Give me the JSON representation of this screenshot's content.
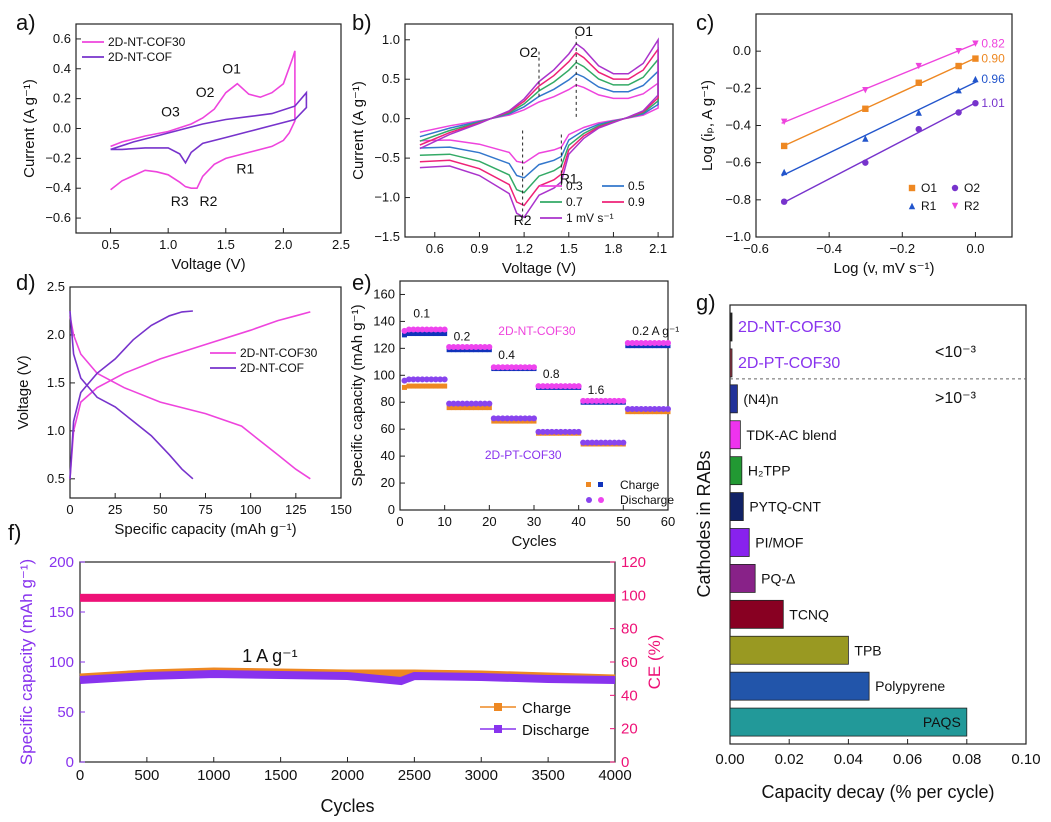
{
  "panel_labels": {
    "a": "a)",
    "b": "b)",
    "c": "c)",
    "d": "d)",
    "e": "e)",
    "f": "f)",
    "g": "g)"
  },
  "chart_data": [
    {
      "id": "a",
      "type": "line",
      "xlabel": "Voltage (V)",
      "ylabel": "Current (A g⁻¹)",
      "xlim": [
        0.2,
        2.5
      ],
      "ylim": [
        -0.7,
        0.7
      ],
      "xticks": [
        0.5,
        1.0,
        1.5,
        2.0,
        2.5
      ],
      "yticks": [
        -0.6,
        -0.4,
        -0.2,
        0.0,
        0.2,
        0.4,
        0.6
      ],
      "series": [
        {
          "name": "2D-NT-COF30",
          "color": "#ee44dd",
          "x": [
            0.5,
            0.6,
            0.8,
            1.0,
            1.2,
            1.3,
            1.4,
            1.5,
            1.6,
            1.7,
            1.8,
            1.9,
            2.0,
            2.08,
            2.1,
            2.1,
            2.05,
            2.0,
            1.9,
            1.7,
            1.5,
            1.4,
            1.3,
            1.25,
            1.2,
            1.15,
            1.1,
            1.0,
            0.9,
            0.8,
            0.6,
            0.5
          ],
          "y": [
            -0.12,
            -0.09,
            -0.05,
            -0.02,
            0.03,
            0.07,
            0.13,
            0.24,
            0.3,
            0.23,
            0.21,
            0.24,
            0.3,
            0.47,
            0.52,
            0.05,
            -0.03,
            -0.08,
            -0.12,
            -0.16,
            -0.2,
            -0.24,
            -0.32,
            -0.4,
            -0.4,
            -0.39,
            -0.36,
            -0.31,
            -0.29,
            -0.28,
            -0.35,
            -0.41
          ]
        },
        {
          "name": "2D-NT-COF",
          "color": "#7733cc",
          "x": [
            0.5,
            0.7,
            0.9,
            1.1,
            1.3,
            1.5,
            1.7,
            1.9,
            2.1,
            2.2,
            2.2,
            2.1,
            1.9,
            1.7,
            1.5,
            1.3,
            1.2,
            1.15,
            1.1,
            1.0,
            0.8,
            0.6,
            0.5
          ],
          "y": [
            -0.14,
            -0.09,
            -0.05,
            -0.01,
            0.03,
            0.06,
            0.08,
            0.1,
            0.15,
            0.24,
            0.14,
            0.06,
            0.02,
            -0.02,
            -0.06,
            -0.1,
            -0.16,
            -0.23,
            -0.17,
            -0.13,
            -0.13,
            -0.14,
            -0.14
          ]
        }
      ],
      "annotations": [
        {
          "text": "O1",
          "x": 1.55,
          "y": 0.37
        },
        {
          "text": "O2",
          "x": 1.32,
          "y": 0.21
        },
        {
          "text": "O3",
          "x": 1.02,
          "y": 0.08
        },
        {
          "text": "R1",
          "x": 1.67,
          "y": -0.3
        },
        {
          "text": "R2",
          "x": 1.35,
          "y": -0.52
        },
        {
          "text": "R3",
          "x": 1.1,
          "y": -0.52
        }
      ]
    },
    {
      "id": "b",
      "type": "line",
      "xlabel": "Voltage (V)",
      "ylabel": "Current (A g⁻¹)",
      "xlim": [
        0.4,
        2.2
      ],
      "ylim": [
        -1.5,
        1.2
      ],
      "xticks": [
        0.6,
        0.9,
        1.2,
        1.5,
        1.8,
        2.1
      ],
      "yticks": [
        -1.5,
        -1.0,
        -0.5,
        0.0,
        0.5,
        1.0
      ],
      "legend_suffix": "mV s⁻¹",
      "series": [
        {
          "name": "0.3",
          "color": "#ee44dd",
          "scale": 0.45
        },
        {
          "name": "0.5",
          "color": "#3377cc",
          "scale": 0.6
        },
        {
          "name": "0.7",
          "color": "#33aa66",
          "scale": 0.75
        },
        {
          "name": "0.9",
          "color": "#ee2277",
          "scale": 0.88
        },
        {
          "name": "1",
          "color": "#aa33cc",
          "scale": 1.0
        }
      ],
      "base_curve": {
        "x": [
          0.5,
          0.7,
          0.9,
          1.1,
          1.2,
          1.3,
          1.4,
          1.5,
          1.55,
          1.6,
          1.7,
          1.8,
          1.9,
          2.0,
          2.1,
          2.1,
          2.0,
          1.9,
          1.8,
          1.7,
          1.6,
          1.5,
          1.45,
          1.4,
          1.3,
          1.2,
          1.15,
          1.1,
          0.9,
          0.7,
          0.5
        ],
        "y": [
          -0.38,
          -0.2,
          -0.06,
          0.1,
          0.25,
          0.47,
          0.62,
          0.82,
          0.95,
          0.88,
          0.67,
          0.57,
          0.57,
          0.7,
          1.0,
          0.3,
          0.1,
          0.02,
          -0.05,
          -0.12,
          -0.25,
          -0.45,
          -0.8,
          -0.88,
          -0.97,
          -1.25,
          -1.2,
          -0.95,
          -0.72,
          -0.6,
          -0.62
        ]
      },
      "annotations": [
        {
          "text": "O1",
          "x": 1.6,
          "y": 1.05
        },
        {
          "text": "O2",
          "x": 1.23,
          "y": 0.78
        },
        {
          "text": "R1",
          "x": 1.5,
          "y": -0.82
        },
        {
          "text": "R2",
          "x": 1.19,
          "y": -1.35
        }
      ]
    },
    {
      "id": "c",
      "type": "scatter",
      "xlabel": "Log (v, mV s⁻¹)",
      "ylabel": "Log (iₚ, A g⁻¹)",
      "xlim": [
        -0.6,
        0.1
      ],
      "ylim": [
        -1.0,
        0.2
      ],
      "xticks": [
        -0.6,
        -0.4,
        -0.2,
        0.0
      ],
      "yticks": [
        -1.0,
        -0.8,
        -0.6,
        -0.4,
        -0.2,
        0.0
      ],
      "x": [
        -0.523,
        -0.301,
        -0.155,
        -0.046,
        0.0
      ],
      "series": [
        {
          "name": "O1",
          "color": "#ee8822",
          "marker": "square",
          "slope": "0.90",
          "values": [
            -0.51,
            -0.31,
            -0.17,
            -0.08,
            -0.04
          ]
        },
        {
          "name": "O2",
          "color": "#7733cc",
          "marker": "circle",
          "slope": "1.01",
          "values": [
            -0.81,
            -0.6,
            -0.42,
            -0.33,
            -0.28
          ]
        },
        {
          "name": "R1",
          "color": "#2255cc",
          "marker": "triangle",
          "slope": "0.96",
          "values": [
            -0.65,
            -0.47,
            -0.33,
            -0.21,
            -0.15
          ]
        },
        {
          "name": "R2",
          "color": "#ee44dd",
          "marker": "triangle-down",
          "slope": "0.82",
          "values": [
            -0.38,
            -0.21,
            -0.08,
            0.0,
            0.04
          ]
        }
      ]
    },
    {
      "id": "d",
      "type": "line",
      "xlabel": "Specific capacity (mAh g⁻¹)",
      "ylabel": "Voltage (V)",
      "xlim": [
        0,
        150
      ],
      "ylim": [
        0.3,
        2.5
      ],
      "xticks": [
        0,
        25,
        50,
        75,
        100,
        125,
        150
      ],
      "yticks": [
        0.5,
        1.0,
        1.5,
        2.0,
        2.5
      ],
      "series": [
        {
          "name": "2D-NT-COF30 charge",
          "color": "#ee44dd",
          "x": [
            0,
            2,
            6,
            15,
            30,
            50,
            75,
            100,
            115,
            125,
            133
          ],
          "y": [
            0.5,
            1.0,
            1.3,
            1.45,
            1.6,
            1.75,
            1.9,
            2.05,
            2.15,
            2.2,
            2.24
          ]
        },
        {
          "name": "2D-NT-COF30 discharge",
          "color": "#ee44dd",
          "x": [
            0,
            2,
            6,
            15,
            30,
            50,
            75,
            95,
            105,
            115,
            125,
            133
          ],
          "y": [
            2.2,
            2.0,
            1.8,
            1.6,
            1.45,
            1.3,
            1.18,
            1.05,
            0.9,
            0.75,
            0.6,
            0.5
          ]
        },
        {
          "name": "2D-NT-COF charge",
          "color": "#7733cc",
          "x": [
            0,
            2,
            6,
            15,
            25,
            35,
            45,
            55,
            62,
            68
          ],
          "y": [
            0.5,
            1.1,
            1.4,
            1.6,
            1.75,
            1.95,
            2.1,
            2.2,
            2.24,
            2.25
          ]
        },
        {
          "name": "2D-NT-COF discharge",
          "color": "#7733cc",
          "x": [
            0,
            2,
            6,
            15,
            25,
            35,
            45,
            55,
            62,
            68
          ],
          "y": [
            2.25,
            1.8,
            1.55,
            1.35,
            1.25,
            1.1,
            0.95,
            0.75,
            0.6,
            0.5
          ]
        }
      ],
      "legend": [
        {
          "name": "2D-NT-COF30",
          "color": "#ee44dd"
        },
        {
          "name": "2D-NT-COF",
          "color": "#7733cc"
        }
      ]
    },
    {
      "id": "e",
      "type": "scatter",
      "xlabel": "Cycles",
      "ylabel": "Specific capacity (mAh g⁻¹)",
      "xlim": [
        0,
        60
      ],
      "ylim": [
        0,
        170
      ],
      "xticks": [
        0,
        10,
        20,
        30,
        40,
        50,
        60
      ],
      "yticks": [
        0,
        20,
        40,
        60,
        80,
        100,
        120,
        140,
        160
      ],
      "rates": [
        "0.1",
        "0.2",
        "0.4",
        "0.8",
        "1.6",
        "0.2 A g⁻¹"
      ],
      "segments": [
        1,
        11,
        21,
        31,
        41,
        51
      ],
      "series_labels": {
        "nt": "2D-NT-COF30",
        "pt": "2D-PT-COF30"
      },
      "nt_charge": [
        131,
        119,
        105,
        91,
        80,
        122
      ],
      "nt_discharge": [
        134,
        121,
        106,
        92,
        81,
        124
      ],
      "pt_charge": [
        92,
        76,
        66,
        57,
        49,
        73
      ],
      "pt_discharge": [
        97,
        79,
        68,
        58,
        50,
        75
      ],
      "legend": [
        "Charge",
        "Discharge"
      ]
    },
    {
      "id": "f",
      "type": "line",
      "xlabel": "Cycles",
      "ylabel": "Specific capacity (mAh g⁻¹)",
      "y2label": "CE (%)",
      "xlim": [
        0,
        4000
      ],
      "ylim": [
        0,
        200
      ],
      "y2lim": [
        0,
        120
      ],
      "xticks": [
        0,
        500,
        1000,
        1500,
        2000,
        2500,
        3000,
        3500,
        4000
      ],
      "yticks": [
        0,
        50,
        100,
        150,
        200
      ],
      "y2ticks": [
        0,
        20,
        40,
        60,
        80,
        100,
        120
      ],
      "annotation": "1 A g⁻¹",
      "charge": {
        "name": "Charge",
        "color": "#ee8822",
        "x": [
          0,
          500,
          1000,
          1500,
          2000,
          2500,
          3000,
          3500,
          4000
        ],
        "values": [
          84,
          88,
          90,
          89,
          88,
          88,
          87,
          85,
          83
        ]
      },
      "discharge": {
        "name": "Discharge",
        "color": "#8833ee",
        "x": [
          0,
          500,
          1000,
          1500,
          2000,
          2400,
          2500,
          3000,
          3500,
          4000
        ],
        "values": [
          82,
          86,
          88,
          87,
          86,
          81,
          86,
          85,
          83,
          82
        ]
      },
      "ce": {
        "name": "CE",
        "color": "#ee1177",
        "value": 98.5
      }
    },
    {
      "id": "g",
      "type": "bar",
      "orientation": "horizontal",
      "xlabel": "Capacity decay (% per cycle)",
      "ylabel": "Cathodes in RABs",
      "xlim": [
        0,
        0.1
      ],
      "xticks": [
        0.0,
        0.02,
        0.04,
        0.06,
        0.08,
        0.1
      ],
      "categories": [
        "2D-NT-COF30",
        "2D-PT-COF30",
        "(N4)n",
        "TDK-AC blend",
        "H₂TPP",
        "PYTQ-CNT",
        "PI/MOF",
        "PQ-Δ",
        "TCNQ",
        "TPB",
        "Polypyrene",
        "PAQS"
      ],
      "values": [
        0.0004,
        0.0006,
        0.0025,
        0.0035,
        0.004,
        0.0045,
        0.0065,
        0.0085,
        0.018,
        0.04,
        0.047,
        0.08
      ],
      "colors": [
        "#222222",
        "#993344",
        "#223399",
        "#ee33ee",
        "#229933",
        "#112266",
        "#8822ee",
        "#882288",
        "#880022",
        "#999922",
        "#2255aa",
        "#229999"
      ],
      "annotations": {
        "low": "<10⁻³",
        "high": ">10⁻³"
      }
    }
  ]
}
